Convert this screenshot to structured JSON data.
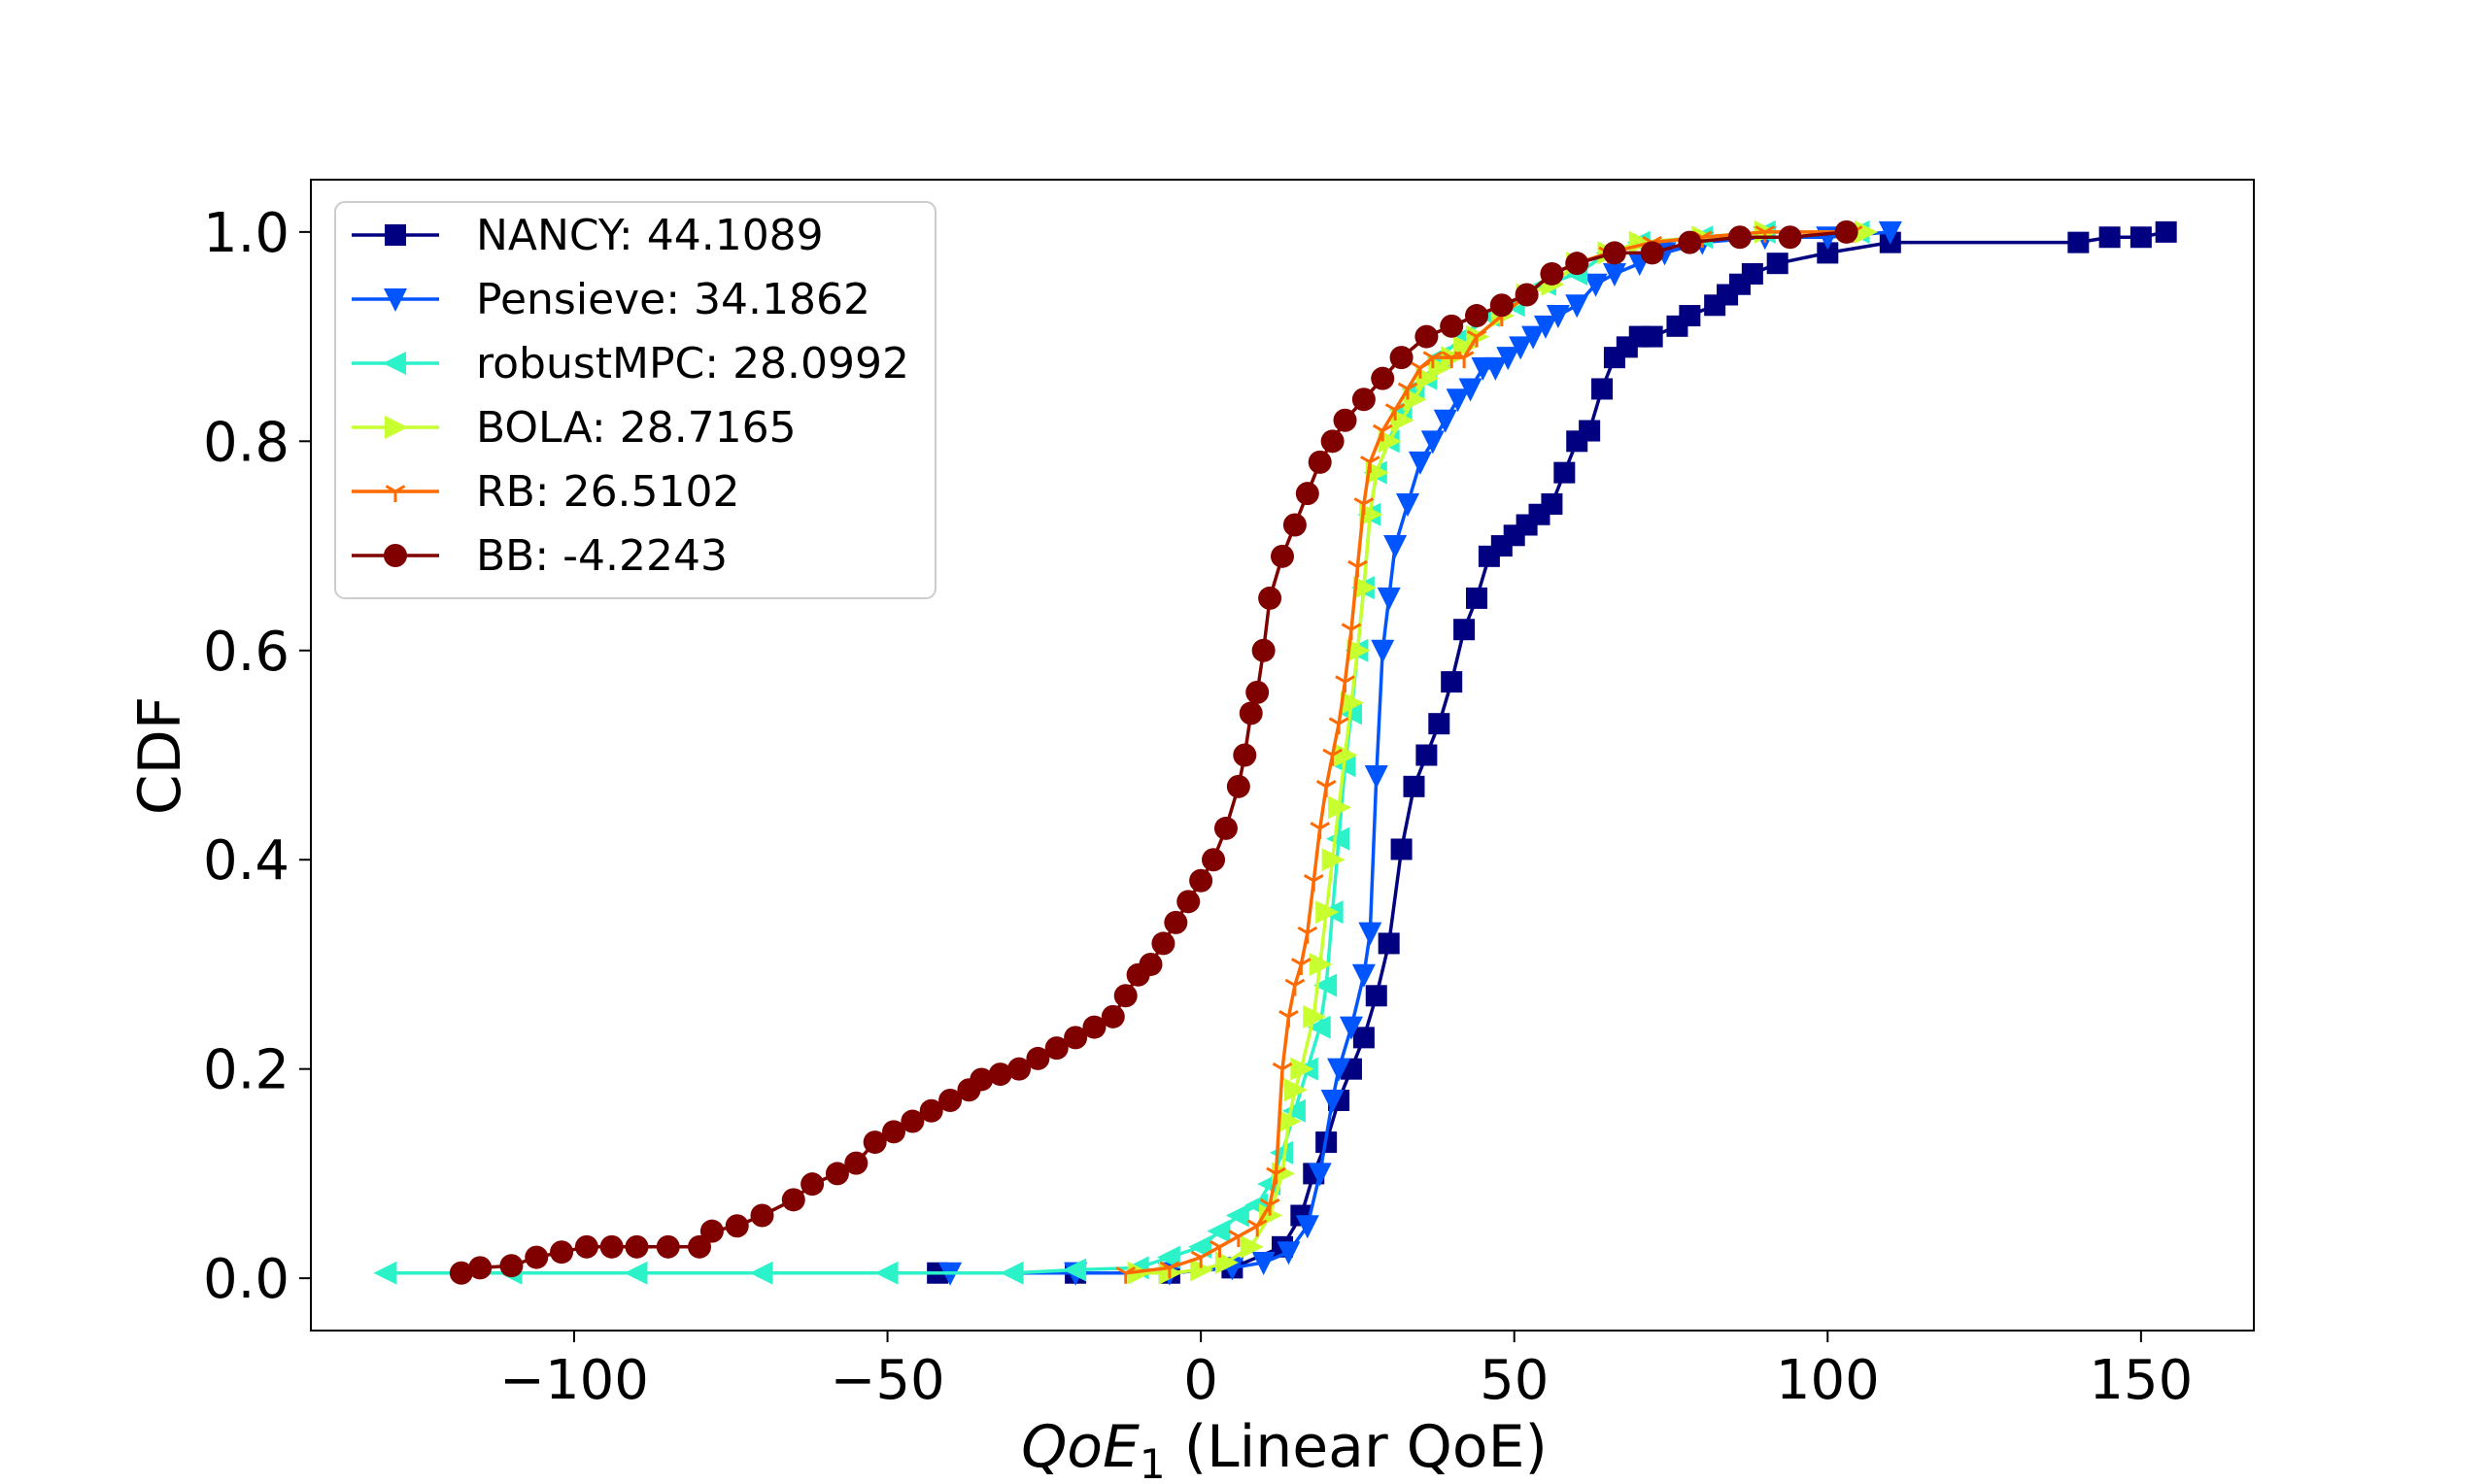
{
  "chart_data": {
    "type": "line",
    "title": "",
    "xlabel_italic": "QoE",
    "xlabel_sub": "1",
    "xlabel_rest": " (Linear QoE)",
    "ylabel": "CDF",
    "xlim": [
      -142,
      168
    ],
    "ylim": [
      -0.05,
      1.05
    ],
    "xticks": [
      -100,
      -50,
      0,
      50,
      100,
      150
    ],
    "xtick_labels": [
      "−100",
      "−50",
      "0",
      "50",
      "100",
      "150"
    ],
    "yticks": [
      0.0,
      0.2,
      0.4,
      0.6,
      0.8,
      1.0
    ],
    "ytick_labels": [
      "0.0",
      "0.2",
      "0.4",
      "0.6",
      "0.8",
      "1.0"
    ],
    "legend_position": "upper-left",
    "series": [
      {
        "name": "NANCY: 44.1089",
        "color": "#000080",
        "marker": "square",
        "points": [
          [
            -42,
            0.005
          ],
          [
            -20,
            0.005
          ],
          [
            -5,
            0.005
          ],
          [
            5,
            0.01
          ],
          [
            13,
            0.03
          ],
          [
            16,
            0.06
          ],
          [
            18,
            0.1
          ],
          [
            20,
            0.13
          ],
          [
            22,
            0.17
          ],
          [
            24,
            0.2
          ],
          [
            26,
            0.23
          ],
          [
            28,
            0.27
          ],
          [
            30,
            0.32
          ],
          [
            32,
            0.41
          ],
          [
            34,
            0.47
          ],
          [
            36,
            0.5
          ],
          [
            38,
            0.53
          ],
          [
            40,
            0.57
          ],
          [
            42,
            0.62
          ],
          [
            44,
            0.65
          ],
          [
            46,
            0.69
          ],
          [
            48,
            0.7
          ],
          [
            50,
            0.71
          ],
          [
            52,
            0.72
          ],
          [
            54,
            0.73
          ],
          [
            56,
            0.74
          ],
          [
            58,
            0.77
          ],
          [
            60,
            0.8
          ],
          [
            62,
            0.81
          ],
          [
            64,
            0.85
          ],
          [
            66,
            0.88
          ],
          [
            68,
            0.89
          ],
          [
            70,
            0.9
          ],
          [
            72,
            0.9
          ],
          [
            76,
            0.91
          ],
          [
            78,
            0.92
          ],
          [
            82,
            0.93
          ],
          [
            84,
            0.94
          ],
          [
            86,
            0.95
          ],
          [
            88,
            0.96
          ],
          [
            92,
            0.97
          ],
          [
            100,
            0.98
          ],
          [
            110,
            0.99
          ],
          [
            140,
            0.99
          ],
          [
            145,
            0.995
          ],
          [
            150,
            0.995
          ],
          [
            154,
            1.0
          ]
        ]
      },
      {
        "name": "Pensieve: 34.1862",
        "color": "#0055ff",
        "marker": "triangle-down",
        "points": [
          [
            -40,
            0.005
          ],
          [
            -20,
            0.005
          ],
          [
            -5,
            0.005
          ],
          [
            5,
            0.01
          ],
          [
            10,
            0.015
          ],
          [
            14,
            0.025
          ],
          [
            17,
            0.05
          ],
          [
            19,
            0.1
          ],
          [
            21,
            0.17
          ],
          [
            22,
            0.2
          ],
          [
            24,
            0.24
          ],
          [
            26,
            0.29
          ],
          [
            27,
            0.33
          ],
          [
            28,
            0.48
          ],
          [
            29,
            0.6
          ],
          [
            30,
            0.65
          ],
          [
            31,
            0.7
          ],
          [
            33,
            0.74
          ],
          [
            35,
            0.78
          ],
          [
            37,
            0.8
          ],
          [
            39,
            0.82
          ],
          [
            41,
            0.84
          ],
          [
            43,
            0.85
          ],
          [
            45,
            0.87
          ],
          [
            47,
            0.87
          ],
          [
            49,
            0.88
          ],
          [
            51,
            0.89
          ],
          [
            53,
            0.9
          ],
          [
            55,
            0.91
          ],
          [
            57,
            0.92
          ],
          [
            60,
            0.93
          ],
          [
            63,
            0.95
          ],
          [
            66,
            0.96
          ],
          [
            70,
            0.97
          ],
          [
            74,
            0.98
          ],
          [
            80,
            0.99
          ],
          [
            90,
            0.995
          ],
          [
            100,
            0.995
          ],
          [
            110,
            1.0
          ]
        ]
      },
      {
        "name": "robustMPC: 28.0992",
        "color": "#2bf2c8",
        "marker": "triangle-left",
        "points": [
          [
            -130,
            0.005
          ],
          [
            -110,
            0.005
          ],
          [
            -90,
            0.005
          ],
          [
            -70,
            0.005
          ],
          [
            -50,
            0.005
          ],
          [
            -30,
            0.005
          ],
          [
            -20,
            0.008
          ],
          [
            -10,
            0.01
          ],
          [
            -5,
            0.02
          ],
          [
            0,
            0.03
          ],
          [
            3,
            0.045
          ],
          [
            6,
            0.06
          ],
          [
            9,
            0.07
          ],
          [
            11,
            0.09
          ],
          [
            13,
            0.12
          ],
          [
            15,
            0.16
          ],
          [
            17,
            0.2
          ],
          [
            19,
            0.24
          ],
          [
            20,
            0.28
          ],
          [
            21,
            0.35
          ],
          [
            22,
            0.42
          ],
          [
            23,
            0.49
          ],
          [
            24,
            0.54
          ],
          [
            25,
            0.6
          ],
          [
            26,
            0.66
          ],
          [
            27,
            0.73
          ],
          [
            28,
            0.77
          ],
          [
            30,
            0.8
          ],
          [
            32,
            0.83
          ],
          [
            34,
            0.85
          ],
          [
            36,
            0.86
          ],
          [
            38,
            0.88
          ],
          [
            42,
            0.9
          ],
          [
            46,
            0.92
          ],
          [
            50,
            0.93
          ],
          [
            55,
            0.95
          ],
          [
            60,
            0.96
          ],
          [
            65,
            0.98
          ],
          [
            70,
            0.99
          ],
          [
            80,
            0.995
          ],
          [
            90,
            1.0
          ],
          [
            105,
            1.0
          ]
        ]
      },
      {
        "name": "BOLA: 28.7165",
        "color": "#c8ff2e",
        "marker": "triangle-right",
        "points": [
          [
            -10,
            0.005
          ],
          [
            -5,
            0.005
          ],
          [
            0,
            0.008
          ],
          [
            4,
            0.015
          ],
          [
            8,
            0.03
          ],
          [
            11,
            0.06
          ],
          [
            13,
            0.1
          ],
          [
            14,
            0.15
          ],
          [
            15,
            0.18
          ],
          [
            16,
            0.2
          ],
          [
            18,
            0.25
          ],
          [
            19,
            0.3
          ],
          [
            20,
            0.35
          ],
          [
            21,
            0.4
          ],
          [
            22,
            0.45
          ],
          [
            23,
            0.5
          ],
          [
            24,
            0.55
          ],
          [
            25,
            0.6
          ],
          [
            26,
            0.66
          ],
          [
            27,
            0.73
          ],
          [
            28,
            0.77
          ],
          [
            30,
            0.8
          ],
          [
            32,
            0.82
          ],
          [
            34,
            0.84
          ],
          [
            36,
            0.86
          ],
          [
            38,
            0.87
          ],
          [
            40,
            0.88
          ],
          [
            42,
            0.89
          ],
          [
            44,
            0.9
          ],
          [
            48,
            0.92
          ],
          [
            52,
            0.94
          ],
          [
            56,
            0.95
          ],
          [
            60,
            0.97
          ],
          [
            65,
            0.98
          ],
          [
            70,
            0.99
          ],
          [
            80,
            0.995
          ],
          [
            90,
            1.0
          ],
          [
            106,
            1.0
          ]
        ]
      },
      {
        "name": "RB: 26.5102",
        "color": "#ff6a00",
        "marker": "tri",
        "points": [
          [
            -12,
            0.005
          ],
          [
            -5,
            0.01
          ],
          [
            0,
            0.02
          ],
          [
            3,
            0.03
          ],
          [
            6,
            0.04
          ],
          [
            9,
            0.05
          ],
          [
            11,
            0.07
          ],
          [
            12,
            0.1
          ],
          [
            13,
            0.2
          ],
          [
            14,
            0.25
          ],
          [
            15,
            0.28
          ],
          [
            16,
            0.3
          ],
          [
            17,
            0.33
          ],
          [
            18,
            0.38
          ],
          [
            19,
            0.43
          ],
          [
            20,
            0.47
          ],
          [
            21,
            0.5
          ],
          [
            22,
            0.53
          ],
          [
            23,
            0.57
          ],
          [
            24,
            0.62
          ],
          [
            25,
            0.68
          ],
          [
            26,
            0.74
          ],
          [
            27,
            0.78
          ],
          [
            29,
            0.81
          ],
          [
            31,
            0.83
          ],
          [
            33,
            0.85
          ],
          [
            35,
            0.87
          ],
          [
            37,
            0.88
          ],
          [
            40,
            0.88
          ],
          [
            42,
            0.88
          ],
          [
            44,
            0.9
          ],
          [
            48,
            0.92
          ],
          [
            52,
            0.94
          ],
          [
            56,
            0.96
          ],
          [
            60,
            0.97
          ],
          [
            65,
            0.98
          ],
          [
            72,
            0.99
          ],
          [
            80,
            0.995
          ],
          [
            90,
            1.0
          ],
          [
            104,
            1.0
          ]
        ]
      },
      {
        "name": "BB: -4.2243",
        "color": "#800000",
        "marker": "circle",
        "points": [
          [
            -118,
            0.005
          ],
          [
            -115,
            0.01
          ],
          [
            -110,
            0.012
          ],
          [
            -106,
            0.02
          ],
          [
            -102,
            0.025
          ],
          [
            -98,
            0.03
          ],
          [
            -94,
            0.03
          ],
          [
            -90,
            0.03
          ],
          [
            -85,
            0.03
          ],
          [
            -80,
            0.03
          ],
          [
            -78,
            0.045
          ],
          [
            -74,
            0.05
          ],
          [
            -70,
            0.06
          ],
          [
            -65,
            0.075
          ],
          [
            -62,
            0.09
          ],
          [
            -58,
            0.1
          ],
          [
            -55,
            0.11
          ],
          [
            -52,
            0.13
          ],
          [
            -49,
            0.14
          ],
          [
            -46,
            0.15
          ],
          [
            -43,
            0.16
          ],
          [
            -40,
            0.17
          ],
          [
            -37,
            0.18
          ],
          [
            -35,
            0.19
          ],
          [
            -32,
            0.195
          ],
          [
            -29,
            0.2
          ],
          [
            -26,
            0.21
          ],
          [
            -23,
            0.22
          ],
          [
            -20,
            0.23
          ],
          [
            -17,
            0.24
          ],
          [
            -14,
            0.25
          ],
          [
            -12,
            0.27
          ],
          [
            -10,
            0.29
          ],
          [
            -8,
            0.3
          ],
          [
            -6,
            0.32
          ],
          [
            -4,
            0.34
          ],
          [
            -2,
            0.36
          ],
          [
            0,
            0.38
          ],
          [
            2,
            0.4
          ],
          [
            4,
            0.43
          ],
          [
            6,
            0.47
          ],
          [
            7,
            0.5
          ],
          [
            8,
            0.54
          ],
          [
            9,
            0.56
          ],
          [
            10,
            0.6
          ],
          [
            11,
            0.65
          ],
          [
            13,
            0.69
          ],
          [
            15,
            0.72
          ],
          [
            17,
            0.75
          ],
          [
            19,
            0.78
          ],
          [
            21,
            0.8
          ],
          [
            23,
            0.82
          ],
          [
            26,
            0.84
          ],
          [
            29,
            0.86
          ],
          [
            32,
            0.88
          ],
          [
            36,
            0.9
          ],
          [
            40,
            0.91
          ],
          [
            44,
            0.92
          ],
          [
            48,
            0.93
          ],
          [
            52,
            0.94
          ],
          [
            56,
            0.96
          ],
          [
            60,
            0.97
          ],
          [
            66,
            0.98
          ],
          [
            72,
            0.98
          ],
          [
            78,
            0.99
          ],
          [
            86,
            0.995
          ],
          [
            94,
            0.995
          ],
          [
            103,
            1.0
          ]
        ]
      }
    ]
  }
}
